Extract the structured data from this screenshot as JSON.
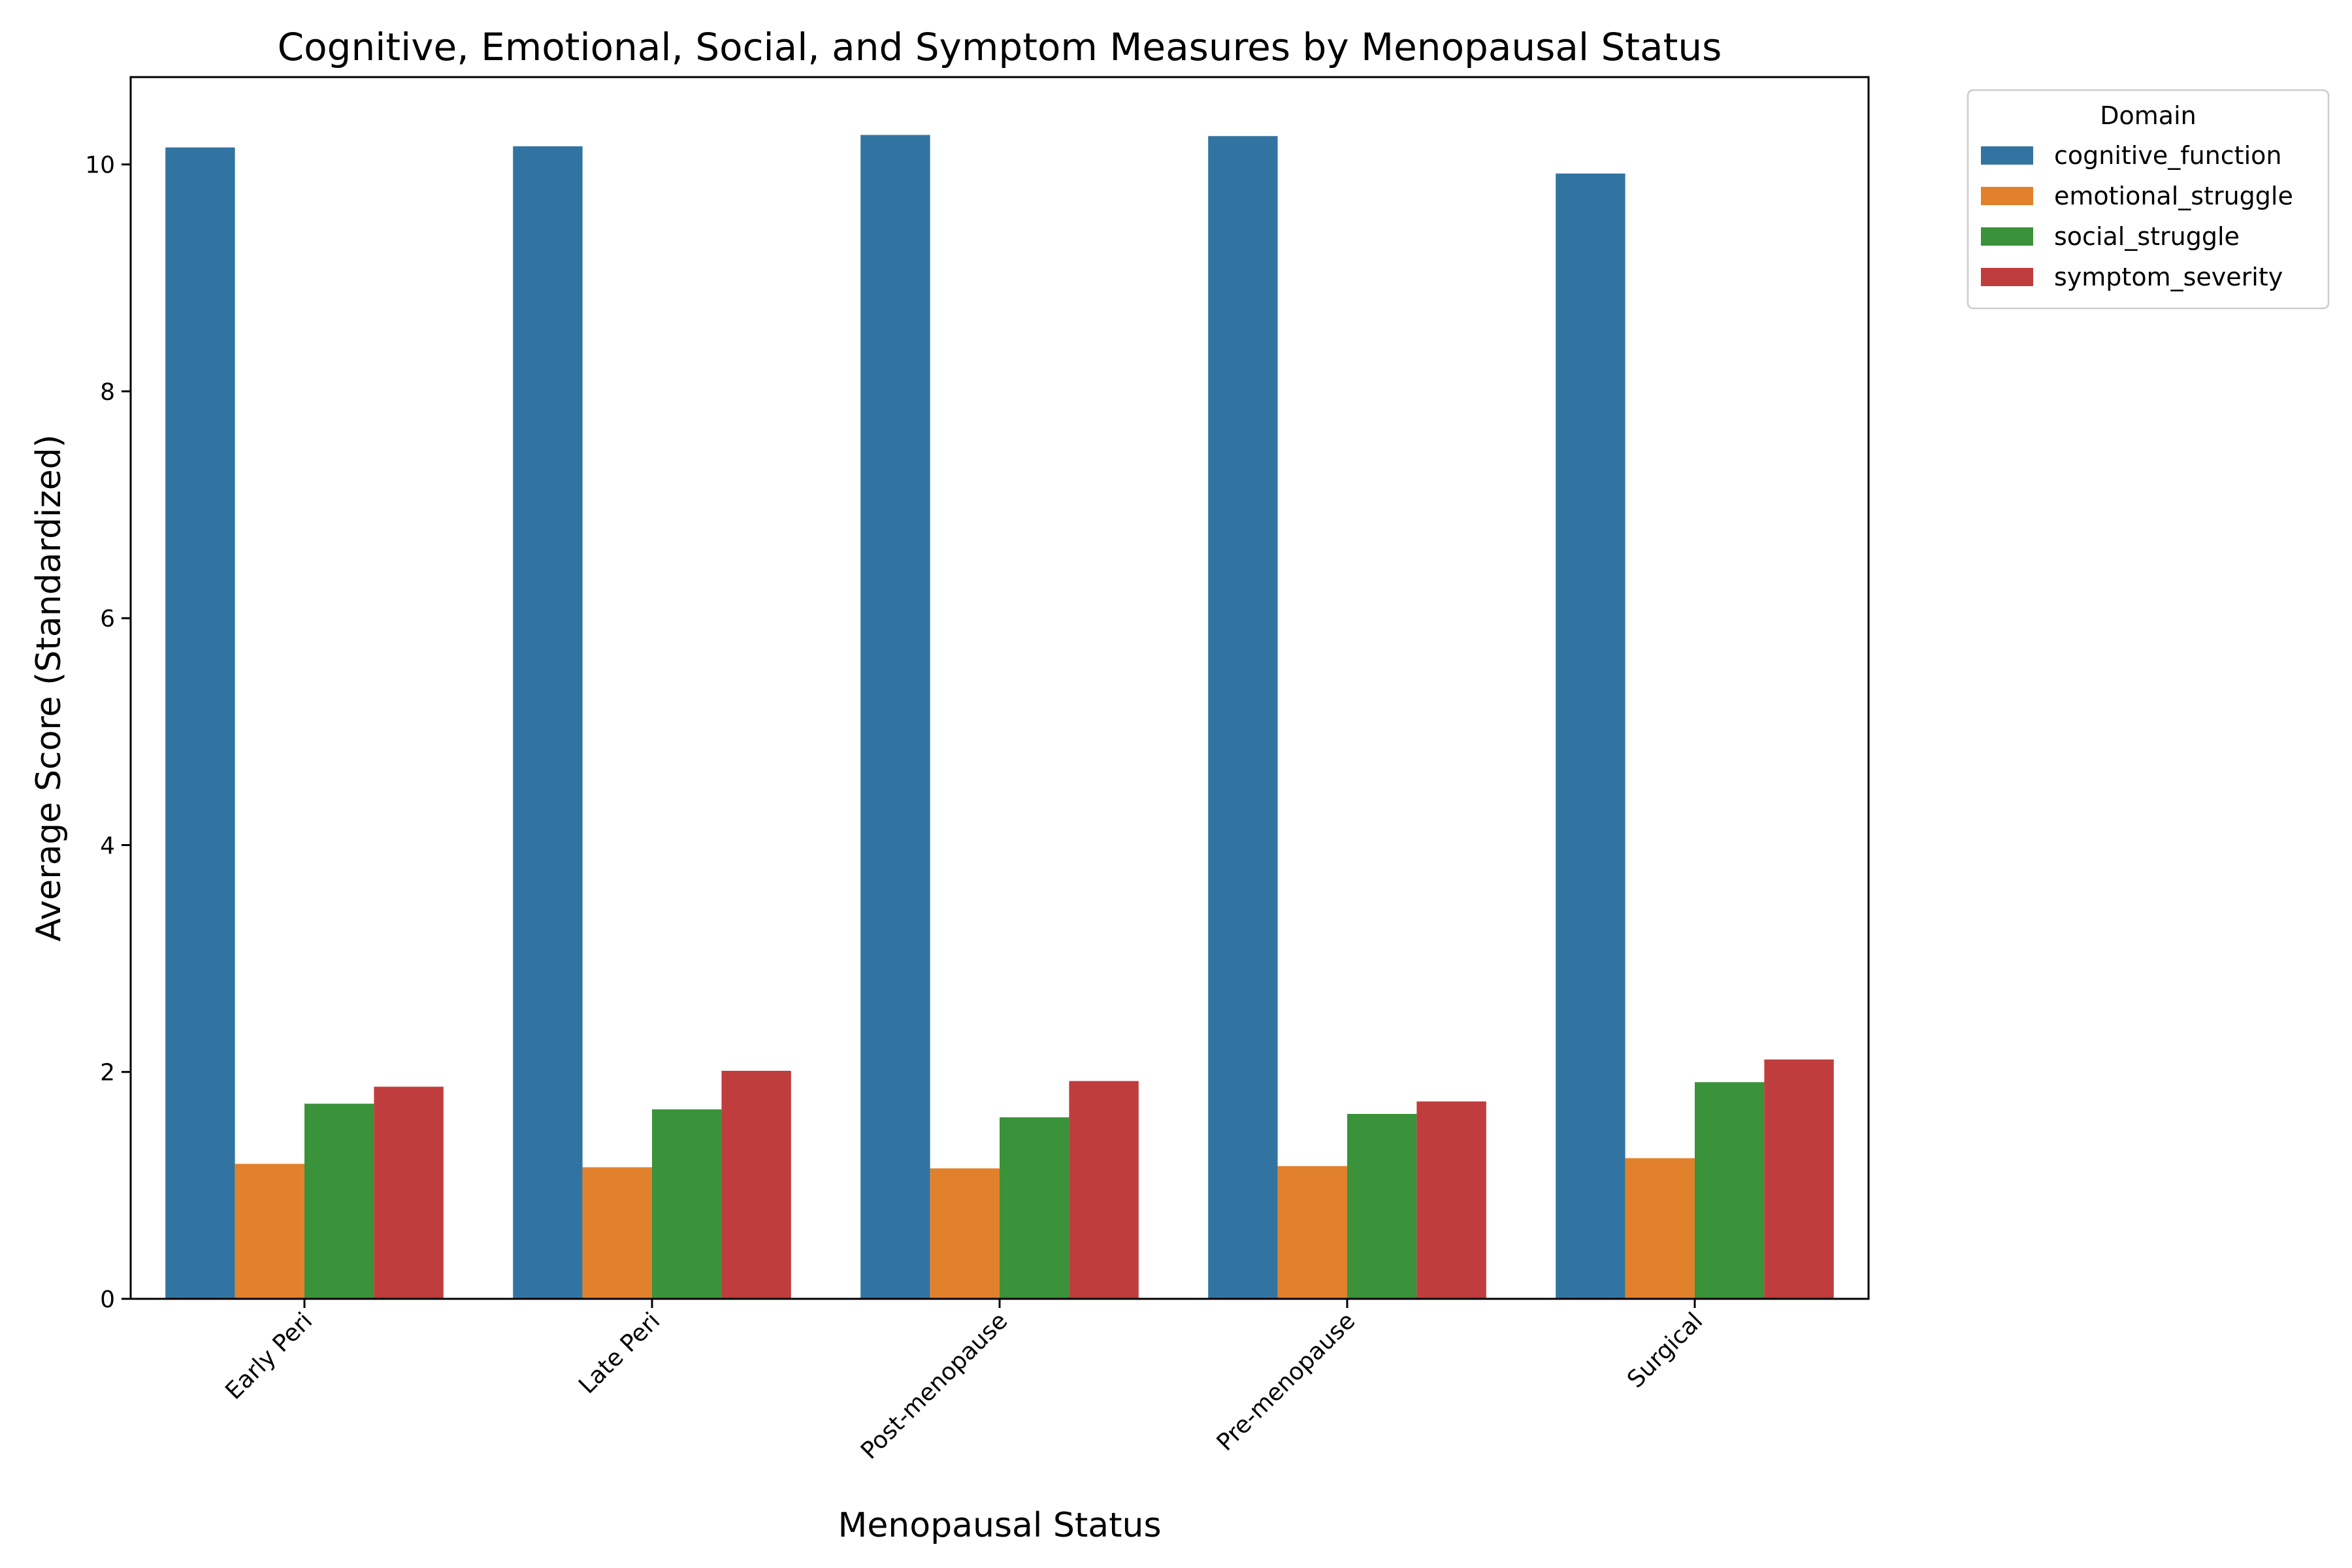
{
  "chart_data": {
    "type": "bar",
    "title": "Cognitive, Emotional, Social, and Symptom Measures by Menopausal Status",
    "xlabel": "Menopausal Status",
    "ylabel": "Average Score (Standardized)",
    "categories": [
      "Early Peri",
      "Late Peri",
      "Post-menopause",
      "Pre-menopause",
      "Surgical"
    ],
    "series": [
      {
        "name": "cognitive_function",
        "color": "#3274a1",
        "values": [
          10.15,
          10.16,
          10.26,
          10.25,
          9.92
        ]
      },
      {
        "name": "emotional_struggle",
        "color": "#e1812c",
        "values": [
          1.19,
          1.16,
          1.15,
          1.17,
          1.24
        ]
      },
      {
        "name": "social_struggle",
        "color": "#3a923a",
        "values": [
          1.72,
          1.67,
          1.6,
          1.63,
          1.91
        ]
      },
      {
        "name": "symptom_severity",
        "color": "#c03d3e",
        "values": [
          1.87,
          2.01,
          1.92,
          1.74,
          2.11
        ]
      }
    ],
    "ylim": [
      0,
      10.77
    ],
    "yticks": [
      "0",
      "2",
      "4",
      "6",
      "8",
      "10"
    ],
    "xtick_rotation": 45,
    "legend": {
      "title": "Domain",
      "placement": "outside-top-right"
    },
    "grid": false
  }
}
